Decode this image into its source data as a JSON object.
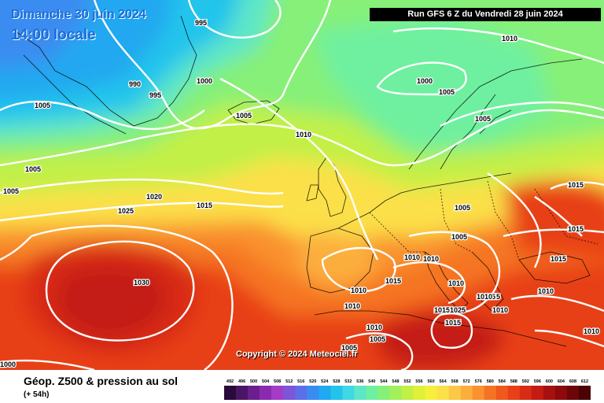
{
  "header": {
    "date": "Dimanche 30 juin 2024",
    "time": "14:00 locale",
    "run": "Run GFS 6 Z du Vendredi 28 juin 2024"
  },
  "copyright": "Copyright © 2024 Meteociel.fr",
  "footer": {
    "title": "Géop. Z500 & pression au sol",
    "subtitle": "(+ 54h)"
  },
  "legend": {
    "ticks": [
      "492",
      "496",
      "500",
      "504",
      "508",
      "512",
      "516",
      "520",
      "524",
      "528",
      "532",
      "536",
      "540",
      "544",
      "548",
      "552",
      "556",
      "560",
      "564",
      "568",
      "572",
      "576",
      "580",
      "584",
      "588",
      "592",
      "596",
      "600",
      "604",
      "608",
      "612"
    ],
    "colors": [
      "#2a0a3a",
      "#4b1566",
      "#6b1e8c",
      "#8a2ab0",
      "#a43cc8",
      "#7d55d8",
      "#5a6fe8",
      "#3a8cf0",
      "#20a8f0",
      "#22c4ec",
      "#3fd8e4",
      "#5de6c8",
      "#6ef0a0",
      "#86f078",
      "#a4f05a",
      "#c2f046",
      "#e0f038",
      "#f6f03c",
      "#fbe04a",
      "#fcc846",
      "#fcae3c",
      "#f9922f",
      "#f57424",
      "#f0581c",
      "#e84018",
      "#d82c14",
      "#c41c12",
      "#a81010",
      "#8c0a0c",
      "#6c0608",
      "#4a0204"
    ]
  },
  "isobar_labels": [
    "995",
    "1010",
    "990",
    "995",
    "1000",
    "1000",
    "1005",
    "1005",
    "1010",
    "1005",
    "1005",
    "1005",
    "1015",
    "1020",
    "1025",
    "1015",
    "1015",
    "1005",
    "1005",
    "1010",
    "1010",
    "1015",
    "1015",
    "1030",
    "1010",
    "1015",
    "1010",
    "1010",
    "1010",
    "1010",
    "1015",
    "1005",
    "1005",
    "1010",
    "1005",
    "1010",
    "1000",
    "1025",
    "1015",
    "1015",
    "1010"
  ]
}
